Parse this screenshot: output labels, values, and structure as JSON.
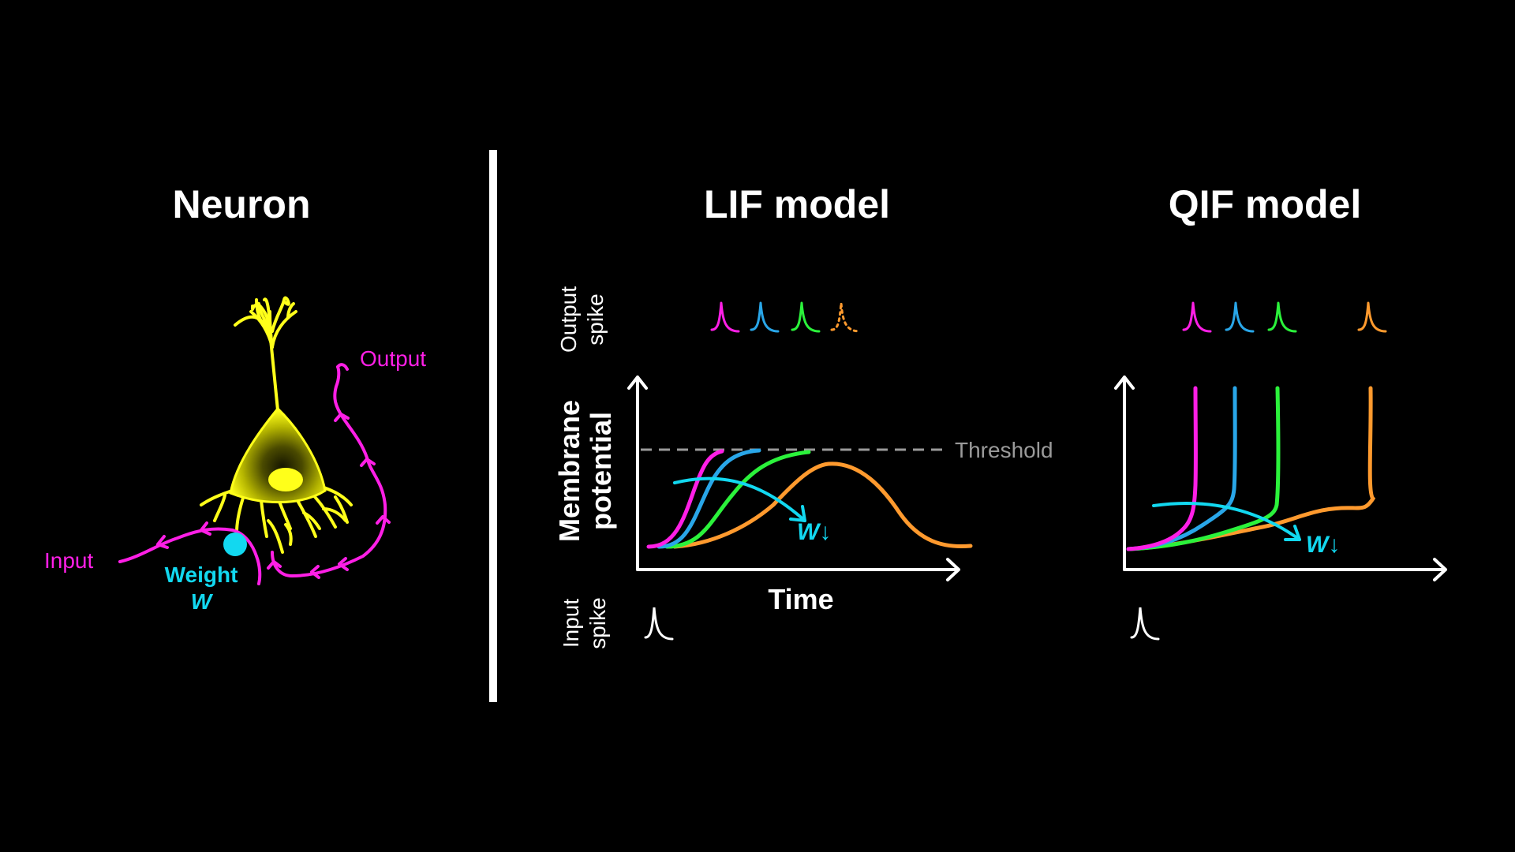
{
  "titles": {
    "neuron": "Neuron",
    "lif": "LIF model",
    "qif": "QIF model"
  },
  "neuron": {
    "input_label": "Input",
    "output_label": "Output",
    "weight_label": "Weight",
    "weight_symbol": "W"
  },
  "lif": {
    "output_spike_label": [
      "Output",
      "spike"
    ],
    "ylabel": [
      "Membrane",
      "potential"
    ],
    "xlabel": "Time",
    "input_spike_label": [
      "Input",
      "spike"
    ],
    "threshold_label": "Threshold",
    "weight_arrow_label": "W↓"
  },
  "qif": {
    "weight_arrow_label": "W↓"
  },
  "colors": {
    "background": "#000000",
    "magenta": "#ff1fe6",
    "blue": "#29a6e8",
    "green": "#2bf23b",
    "orange": "#ff9a2e",
    "cyan": "#12d8f0",
    "yellow": "#ffff1a",
    "white": "#ffffff",
    "threshold_gray": "#9a9a9a"
  },
  "icons": [
    "neuron-cell-icon",
    "spike-icon",
    "axis-arrow-icon",
    "weight-arrow-icon"
  ]
}
